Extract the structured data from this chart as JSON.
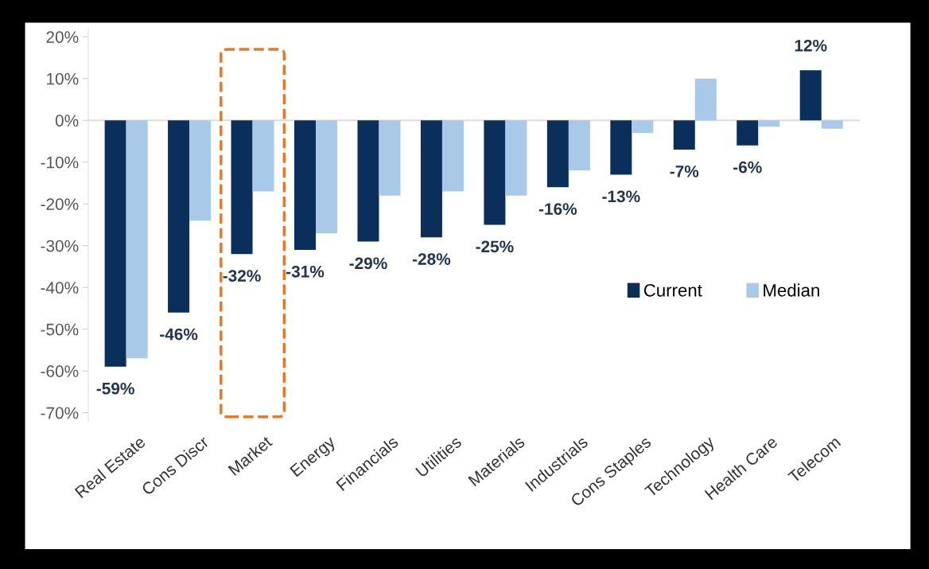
{
  "chart_data": {
    "type": "bar",
    "categories": [
      "Real Estate",
      "Cons Discr",
      "Market",
      "Energy",
      "Financials",
      "Utilities",
      "Materials",
      "Industrials",
      "Cons Staples",
      "Technology",
      "Health Care",
      "Telecom"
    ],
    "series": [
      {
        "name": "Current",
        "color": "#0b2f5b",
        "values": [
          -59,
          -46,
          -32,
          -31,
          -29,
          -28,
          -25,
          -16,
          -13,
          -7,
          -6,
          12
        ],
        "value_labels": [
          "-59%",
          "-46%",
          "-32%",
          "-31%",
          "-29%",
          "-28%",
          "-25%",
          "-16%",
          "-13%",
          "-7%",
          "-6%",
          "12%"
        ]
      },
      {
        "name": "Median",
        "color": "#a9c9e8",
        "values": [
          -57,
          -24,
          -17,
          -27,
          -18,
          -17,
          -18,
          -12,
          -3,
          10,
          -1.5,
          -2
        ]
      }
    ],
    "ylim": [
      -72,
      22
    ],
    "yticks": [
      {
        "value": 20,
        "label": "20%"
      },
      {
        "value": 10,
        "label": "10%"
      },
      {
        "value": 0,
        "label": "0%"
      },
      {
        "value": -10,
        "label": "-10%"
      },
      {
        "value": -20,
        "label": "-20%"
      },
      {
        "value": -30,
        "label": "-30%"
      },
      {
        "value": -40,
        "label": "-40%"
      },
      {
        "value": -50,
        "label": "-50%"
      },
      {
        "value": -60,
        "label": "-60%"
      },
      {
        "value": -70,
        "label": "-70%"
      }
    ],
    "legend": "right"
  }
}
